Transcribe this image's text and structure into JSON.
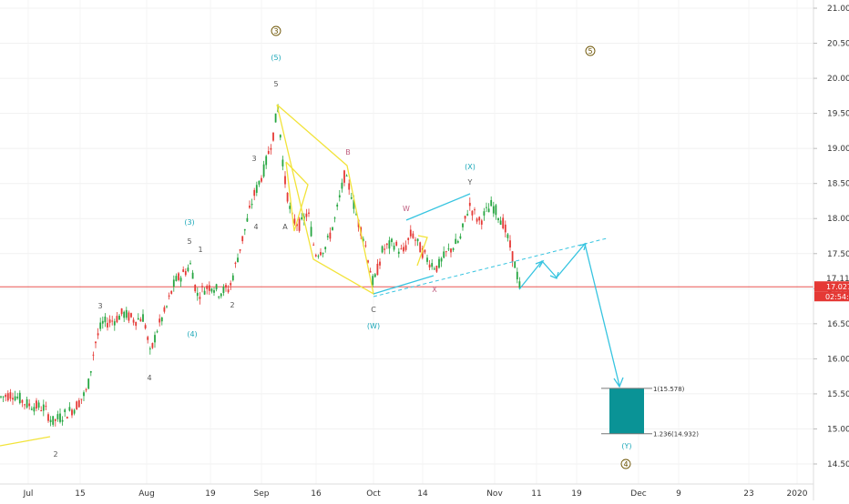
{
  "chart_data": {
    "type": "candlestick",
    "y_axis": {
      "ticks": [
        "21.000",
        "20.500",
        "20.000",
        "19.500",
        "19.000",
        "18.500",
        "18.000",
        "17.500",
        "17.000",
        "16.500",
        "16.000",
        "15.500",
        "15.000",
        "14.500"
      ],
      "ylim": [
        14.3,
        21.1
      ]
    },
    "x_axis": {
      "ticks": [
        "Jul",
        "15",
        "Aug",
        "19",
        "Sep",
        "16",
        "Oct",
        "14",
        "Nov",
        "11",
        "19",
        "Dec",
        "9",
        "23",
        "2020"
      ]
    },
    "price_label": "17.027",
    "prev_label": "17.118",
    "countdown": "02:54:31",
    "price_line_color": "#e53935",
    "up_color": "#26a641",
    "down_color": "#e53935",
    "target_box": {
      "top": 15.578,
      "bottom": 14.932,
      "top_label": "1(15.578)",
      "bottom_label": "1.236(14.932)",
      "color": "#0a9396"
    },
    "wave_labels": [
      {
        "id": "circ-3",
        "text": "3"
      },
      {
        "id": "circ-5",
        "text": "5"
      },
      {
        "id": "circ-4",
        "text": "4"
      },
      {
        "id": "p5",
        "text": "(5)"
      },
      {
        "id": "p3",
        "text": "(3)"
      },
      {
        "id": "p4",
        "text": "(4)"
      },
      {
        "id": "pW",
        "text": "(W)"
      },
      {
        "id": "pX",
        "text": "(X)"
      },
      {
        "id": "pY",
        "text": "(Y)"
      },
      {
        "id": "n5a",
        "text": "5"
      },
      {
        "id": "n3a",
        "text": "3"
      },
      {
        "id": "n4a",
        "text": "4"
      },
      {
        "id": "n5b",
        "text": "5"
      },
      {
        "id": "n1",
        "text": "1"
      },
      {
        "id": "n2a",
        "text": "2"
      },
      {
        "id": "n3b",
        "text": "3"
      },
      {
        "id": "n4b",
        "text": "4"
      },
      {
        "id": "n2b",
        "text": "2"
      },
      {
        "id": "nA",
        "text": "A"
      },
      {
        "id": "nB",
        "text": "B"
      },
      {
        "id": "nC",
        "text": "C"
      },
      {
        "id": "nW",
        "text": "W"
      },
      {
        "id": "nX",
        "text": "X"
      },
      {
        "id": "nY",
        "text": "Y"
      }
    ]
  }
}
